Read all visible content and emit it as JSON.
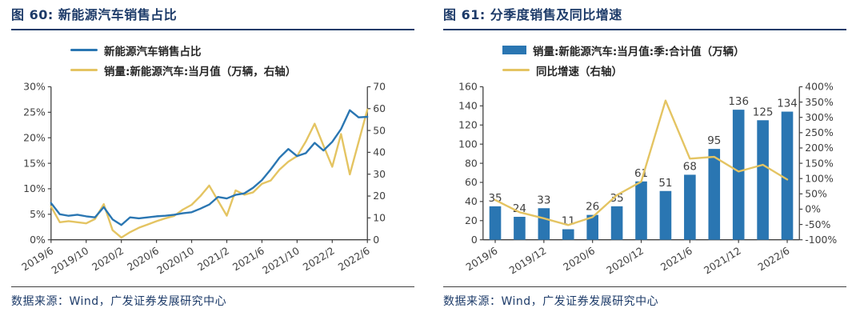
{
  "footer_source": "数据来源：Wind，广发证券发展研究中心",
  "colors": {
    "accent_navy": "#1d3b69",
    "series_blue": "#2a76b2",
    "series_yellow": "#e4c462",
    "axis_text": "#404040",
    "axis_line": "#404040"
  },
  "charts": [
    {
      "title": "图 60: 新能源汽车销售占比",
      "legend": [
        {
          "swatch": "line",
          "color": "#2a76b2",
          "label": "新能源汽车销售占比"
        },
        {
          "swatch": "line",
          "color": "#e4c462",
          "label": "销量:新能源汽车:当月值（万辆，右轴）"
        }
      ],
      "chart_data": {
        "type": "line",
        "x": [
          "2019/6",
          "2019/7",
          "2019/8",
          "2019/9",
          "2019/10",
          "2019/11",
          "2019/12",
          "2020/1",
          "2020/2",
          "2020/3",
          "2020/4",
          "2020/5",
          "2020/6",
          "2020/7",
          "2020/8",
          "2020/9",
          "2020/10",
          "2020/11",
          "2020/12",
          "2021/1",
          "2021/2",
          "2021/3",
          "2021/4",
          "2021/5",
          "2021/6",
          "2021/7",
          "2021/8",
          "2021/9",
          "2021/10",
          "2021/11",
          "2021/12",
          "2022/1",
          "2022/2",
          "2022/3",
          "2022/4",
          "2022/5",
          "2022/6"
        ],
        "x_tick_indices": [
          0,
          4,
          8,
          12,
          16,
          20,
          24,
          28,
          32,
          36
        ],
        "x_tick_labels": [
          "2019/6",
          "2019/10",
          "2020/2",
          "2020/6",
          "2020/10",
          "2021/2",
          "2021/6",
          "2021/10",
          "2022/2",
          "2022/6"
        ],
        "left_axis": {
          "min": 0,
          "max": 30,
          "step": 5,
          "format": "percent"
        },
        "right_axis": {
          "min": 0,
          "max": 70,
          "step": 10
        },
        "grid": false,
        "legend_position": "top-left",
        "series": [
          {
            "name": "新能源汽车销售占比",
            "axis": "left",
            "color": "#2a76b2",
            "values": [
              7.2,
              5.0,
              4.7,
              4.9,
              4.6,
              4.4,
              6.4,
              4.0,
              2.9,
              4.4,
              4.2,
              4.4,
              4.6,
              4.7,
              4.9,
              5.2,
              5.4,
              6.1,
              6.9,
              8.4,
              8.1,
              8.8,
              9.1,
              10.2,
              11.7,
              13.8,
              16.1,
              17.8,
              16.4,
              17.0,
              19.0,
              17.5,
              19.2,
              21.7,
              25.4,
              24.0,
              24.1
            ]
          },
          {
            "name": "销量:新能源汽车:当月值（万辆，右轴）",
            "axis": "right",
            "color": "#e4c462",
            "values": [
              15.2,
              8.0,
              8.5,
              8.0,
              7.5,
              9.5,
              16.3,
              4.4,
              1.0,
              3.5,
              5.5,
              7.0,
              8.5,
              9.8,
              10.9,
              13.8,
              16.0,
              20.0,
              24.8,
              17.9,
              11.0,
              22.6,
              20.6,
              21.7,
              25.6,
              27.1,
              32.1,
              35.7,
              38.3,
              45.0,
              53.1,
              43.1,
              33.4,
              48.4,
              29.9,
              44.7,
              59.6
            ]
          }
        ]
      }
    },
    {
      "title": "图 61: 分季度销售及同比增速",
      "legend": [
        {
          "swatch": "rect",
          "color": "#2a76b2",
          "label": "销量:新能源汽车:当月值:季:合计值（万辆）"
        },
        {
          "swatch": "line",
          "color": "#e4c462",
          "label": "同比增速（右轴）"
        }
      ],
      "chart_data": {
        "type": "bar+line",
        "categories": [
          "2019/6",
          "2019/9",
          "2019/12",
          "2020/3",
          "2020/6",
          "2020/9",
          "2020/12",
          "2021/3",
          "2021/6",
          "2021/9",
          "2021/12",
          "2022/3",
          "2022/6"
        ],
        "x_tick_indices": [
          0,
          2,
          4,
          6,
          8,
          10,
          12
        ],
        "x_tick_labels": [
          "2019/6",
          "2019/12",
          "2020/6",
          "2020/12",
          "2021/6",
          "2021/12",
          "2022/6"
        ],
        "left_axis": {
          "min": 0,
          "max": 160,
          "step": 20
        },
        "right_axis": {
          "min": -100,
          "max": 400,
          "step": 50,
          "format": "percent"
        },
        "grid": false,
        "legend_position": "top-left",
        "bars": {
          "name": "销量:新能源汽车:当月值:季:合计值（万辆）",
          "axis": "left",
          "color": "#2a76b2",
          "show_labels": true,
          "values": [
            35,
            24,
            33,
            11,
            26,
            35,
            61,
            51,
            68,
            95,
            136,
            125,
            134
          ]
        },
        "line": {
          "name": "同比增速（右轴）",
          "axis": "right",
          "color": "#e4c462",
          "values": [
            30,
            -10,
            -30,
            -52,
            -26,
            46,
            90,
            355,
            165,
            171,
            123,
            145,
            97
          ]
        }
      }
    }
  ]
}
